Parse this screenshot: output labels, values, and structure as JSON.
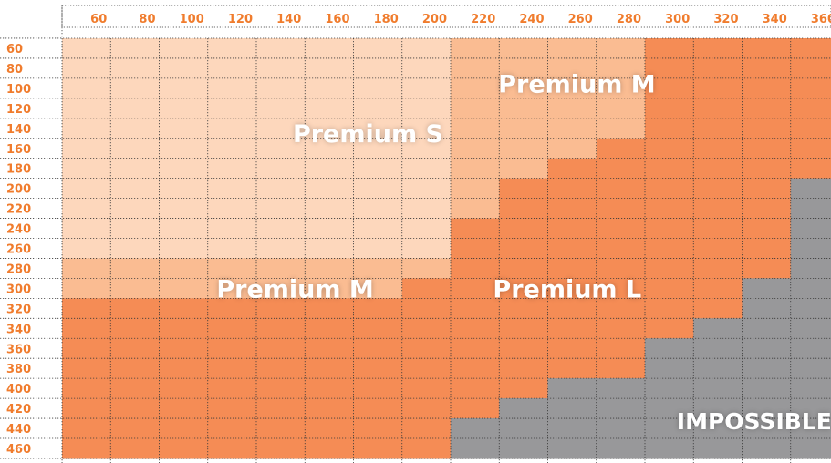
{
  "chart_data": {
    "type": "heatmap",
    "x_ticks": [
      60,
      80,
      100,
      120,
      140,
      160,
      180,
      200,
      220,
      240,
      260,
      280,
      300,
      320,
      340,
      360
    ],
    "y_ticks": [
      60,
      80,
      100,
      120,
      140,
      160,
      180,
      200,
      220,
      240,
      260,
      280,
      300,
      320,
      340,
      360,
      380,
      400,
      420,
      440,
      460
    ],
    "zone_names": [
      "Premium S",
      "Premium M",
      "Premium L",
      "IMPOSSIBLE"
    ],
    "zone_colors": [
      "#fdd7bc",
      "#fabc92",
      "#f58c55",
      "#98989a"
    ],
    "grid": [
      [
        0,
        0,
        0,
        0,
        0,
        0,
        0,
        0,
        1,
        1,
        1,
        1,
        2,
        2,
        2,
        2
      ],
      [
        0,
        0,
        0,
        0,
        0,
        0,
        0,
        0,
        1,
        1,
        1,
        1,
        2,
        2,
        2,
        2
      ],
      [
        0,
        0,
        0,
        0,
        0,
        0,
        0,
        0,
        1,
        1,
        1,
        1,
        2,
        2,
        2,
        2
      ],
      [
        0,
        0,
        0,
        0,
        0,
        0,
        0,
        0,
        1,
        1,
        1,
        1,
        2,
        2,
        2,
        2
      ],
      [
        0,
        0,
        0,
        0,
        0,
        0,
        0,
        0,
        1,
        1,
        1,
        1,
        2,
        2,
        2,
        2
      ],
      [
        0,
        0,
        0,
        0,
        0,
        0,
        0,
        0,
        1,
        1,
        1,
        2,
        2,
        2,
        2,
        2
      ],
      [
        0,
        0,
        0,
        0,
        0,
        0,
        0,
        0,
        1,
        1,
        2,
        2,
        2,
        2,
        2,
        2
      ],
      [
        0,
        0,
        0,
        0,
        0,
        0,
        0,
        0,
        1,
        2,
        2,
        2,
        2,
        2,
        2,
        3
      ],
      [
        0,
        0,
        0,
        0,
        0,
        0,
        0,
        0,
        1,
        2,
        2,
        2,
        2,
        2,
        2,
        3
      ],
      [
        0,
        0,
        0,
        0,
        0,
        0,
        0,
        0,
        2,
        2,
        2,
        2,
        2,
        2,
        2,
        3
      ],
      [
        0,
        0,
        0,
        0,
        0,
        0,
        0,
        0,
        2,
        2,
        2,
        2,
        2,
        2,
        2,
        3
      ],
      [
        1,
        1,
        1,
        1,
        1,
        1,
        1,
        1,
        2,
        2,
        2,
        2,
        2,
        2,
        2,
        3
      ],
      [
        1,
        1,
        1,
        1,
        1,
        1,
        1,
        2,
        2,
        2,
        2,
        2,
        2,
        2,
        3,
        3
      ],
      [
        2,
        2,
        2,
        2,
        2,
        2,
        2,
        2,
        2,
        2,
        2,
        2,
        2,
        2,
        3,
        3
      ],
      [
        2,
        2,
        2,
        2,
        2,
        2,
        2,
        2,
        2,
        2,
        2,
        2,
        2,
        3,
        3,
        3
      ],
      [
        2,
        2,
        2,
        2,
        2,
        2,
        2,
        2,
        2,
        2,
        2,
        2,
        3,
        3,
        3,
        3
      ],
      [
        2,
        2,
        2,
        2,
        2,
        2,
        2,
        2,
        2,
        2,
        2,
        2,
        3,
        3,
        3,
        3
      ],
      [
        2,
        2,
        2,
        2,
        2,
        2,
        2,
        2,
        2,
        2,
        3,
        3,
        3,
        3,
        3,
        3
      ],
      [
        2,
        2,
        2,
        2,
        2,
        2,
        2,
        2,
        2,
        3,
        3,
        3,
        3,
        3,
        3,
        3
      ],
      [
        2,
        2,
        2,
        2,
        2,
        2,
        2,
        2,
        3,
        3,
        3,
        3,
        3,
        3,
        3,
        3
      ],
      [
        2,
        2,
        2,
        2,
        2,
        2,
        2,
        2,
        3,
        3,
        3,
        3,
        3,
        3,
        3,
        3
      ]
    ],
    "labels": [
      {
        "text": "Premium S",
        "zone": 0,
        "x": 166,
        "y": 144,
        "size": "large"
      },
      {
        "text": "Premium M",
        "zone": 1,
        "x": 252,
        "y": 94,
        "size": "large"
      },
      {
        "text": "Premium M",
        "zone": 1,
        "x": 136,
        "y": 299,
        "size": "large"
      },
      {
        "text": "Premium L",
        "zone": 2,
        "x": 248,
        "y": 299,
        "size": "large"
      },
      {
        "text": "IMPOSSIBLE",
        "zone": 3,
        "x": 325,
        "y": 431,
        "size": "medium"
      }
    ],
    "tick_color": "#f07c2d",
    "grid_line_color": "#3a3a3a"
  }
}
